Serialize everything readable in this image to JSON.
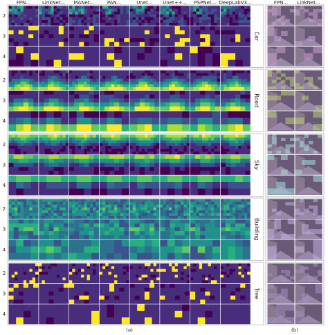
{
  "panel_a": {
    "columns": [
      "FPN...",
      "LinkNet...",
      "MANet...",
      "PAN...",
      "Unet...",
      "Unet++...",
      "PSPNet...",
      "DeepLabV3..."
    ],
    "classes": [
      {
        "name": "Car",
        "rows": [
          "2",
          "3",
          "4"
        ]
      },
      {
        "name": "Road",
        "rows": [
          "2",
          "3",
          "4"
        ]
      },
      {
        "name": "Sky",
        "rows": [
          "2",
          "3",
          "4"
        ]
      },
      {
        "name": "Building",
        "rows": [
          "2",
          "3",
          "4"
        ]
      },
      {
        "name": "Tree",
        "rows": [
          "2",
          "3",
          "4"
        ]
      }
    ],
    "caption": "(a)"
  },
  "panel_b": {
    "columns": [
      "FPN...",
      "LinkNet..."
    ],
    "caption": "(b)"
  }
}
